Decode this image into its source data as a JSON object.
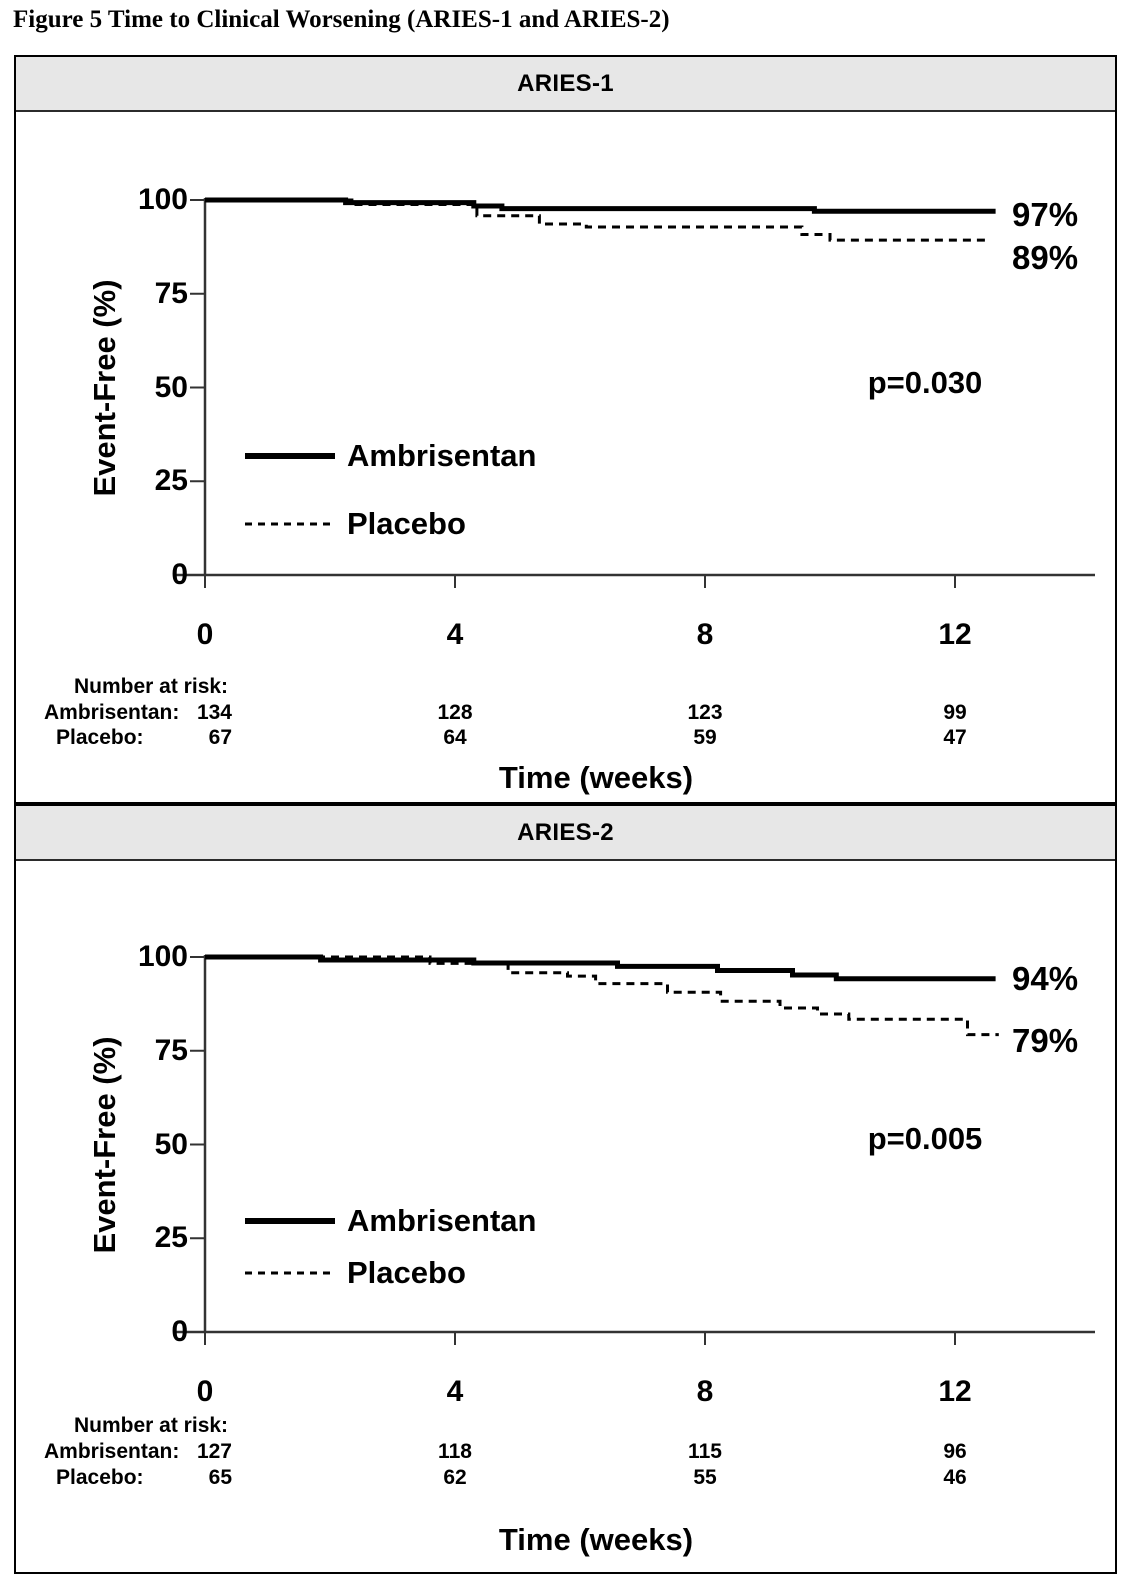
{
  "figure_title": "Figure 5 Time to Clinical Worsening (ARIES-1 and ARIES-2)",
  "colors": {
    "ink": "#000000",
    "axis": "#333333",
    "panel_header_bg": "#e7e7e7",
    "panel_border": "#000000"
  },
  "chart_data": [
    {
      "type": "line",
      "subtype": "kaplan-meier-step",
      "title": "ARIES-1",
      "xlabel": "Time (weeks)",
      "ylabel": "Event-Free (%)",
      "xlim": [
        0,
        12.8
      ],
      "ylim": [
        0,
        100
      ],
      "xticks": [
        0,
        4,
        8,
        12
      ],
      "yticks": [
        100,
        75,
        50,
        25,
        0
      ],
      "grid": false,
      "legend_position": "inside-lower-left",
      "p_value": "p=0.030",
      "series": [
        {
          "name": "Ambrisentan",
          "style": "solid",
          "end_label": "97%",
          "points": [
            [
              0,
              100
            ],
            [
              2.25,
              100
            ],
            [
              2.25,
              99.3
            ],
            [
              4.3,
              99.3
            ],
            [
              4.3,
              98.4
            ],
            [
              4.75,
              98.4
            ],
            [
              4.75,
              97.7
            ],
            [
              9.75,
              97.7
            ],
            [
              9.75,
              97
            ],
            [
              12.65,
              97
            ]
          ]
        },
        {
          "name": "Placebo",
          "style": "dashed",
          "end_label": "89%",
          "points": [
            [
              0,
              100
            ],
            [
              2.35,
              100
            ],
            [
              2.35,
              98.8
            ],
            [
              4.35,
              98.8
            ],
            [
              4.35,
              95.8
            ],
            [
              5.35,
              95.8
            ],
            [
              5.35,
              93.6
            ],
            [
              6.1,
              93.6
            ],
            [
              6.1,
              92.8
            ],
            [
              9.55,
              92.8
            ],
            [
              9.55,
              90.8
            ],
            [
              10.0,
              90.8
            ],
            [
              10.0,
              89.3
            ],
            [
              12.55,
              89.3
            ]
          ]
        }
      ],
      "at_risk": {
        "title": "Number at risk:",
        "rows": [
          {
            "label": "Ambrisentan:",
            "values": [
              "134",
              "128",
              "123",
              "99"
            ]
          },
          {
            "label": "Placebo:",
            "values": [
              "67",
              "64",
              "59",
              "47"
            ]
          }
        ]
      }
    },
    {
      "type": "line",
      "subtype": "kaplan-meier-step",
      "title": "ARIES-2",
      "xlabel": "Time (weeks)",
      "ylabel": "Event-Free (%)",
      "xlim": [
        0,
        12.8
      ],
      "ylim": [
        0,
        100
      ],
      "xticks": [
        0,
        4,
        8,
        12
      ],
      "yticks": [
        100,
        75,
        50,
        25,
        0
      ],
      "grid": false,
      "legend_position": "inside-lower-left",
      "p_value": "p=0.005",
      "series": [
        {
          "name": "Ambrisentan",
          "style": "solid",
          "end_label": "94%",
          "points": [
            [
              0,
              100
            ],
            [
              1.85,
              100
            ],
            [
              1.85,
              99.2
            ],
            [
              4.3,
              99.2
            ],
            [
              4.3,
              98.4
            ],
            [
              6.6,
              98.4
            ],
            [
              6.6,
              97.5
            ],
            [
              8.2,
              97.5
            ],
            [
              8.2,
              96.4
            ],
            [
              9.4,
              96.4
            ],
            [
              9.4,
              95.2
            ],
            [
              10.1,
              95.2
            ],
            [
              10.1,
              94.2
            ],
            [
              12.65,
              94.2
            ]
          ]
        },
        {
          "name": "Placebo",
          "style": "dashed",
          "end_label": "79%",
          "points": [
            [
              0,
              100
            ],
            [
              3.6,
              100
            ],
            [
              3.6,
              98.3
            ],
            [
              4.85,
              98.3
            ],
            [
              4.85,
              95.8
            ],
            [
              5.8,
              95.8
            ],
            [
              5.8,
              94.9
            ],
            [
              6.25,
              94.9
            ],
            [
              6.25,
              92.9
            ],
            [
              7.4,
              92.9
            ],
            [
              7.4,
              90.6
            ],
            [
              8.25,
              90.6
            ],
            [
              8.25,
              88.2
            ],
            [
              9.2,
              88.2
            ],
            [
              9.2,
              86.4
            ],
            [
              9.8,
              86.4
            ],
            [
              9.8,
              84.8
            ],
            [
              10.3,
              84.8
            ],
            [
              10.3,
              83.4
            ],
            [
              12.2,
              83.4
            ],
            [
              12.2,
              79.3
            ],
            [
              12.7,
              79.3
            ]
          ]
        }
      ],
      "at_risk": {
        "title": "Number at risk:",
        "rows": [
          {
            "label": "Ambrisentan:",
            "values": [
              "127",
              "118",
              "115",
              "96"
            ]
          },
          {
            "label": "Placebo:",
            "values": [
              "65",
              "62",
              "55",
              "46"
            ]
          }
        ]
      }
    }
  ]
}
